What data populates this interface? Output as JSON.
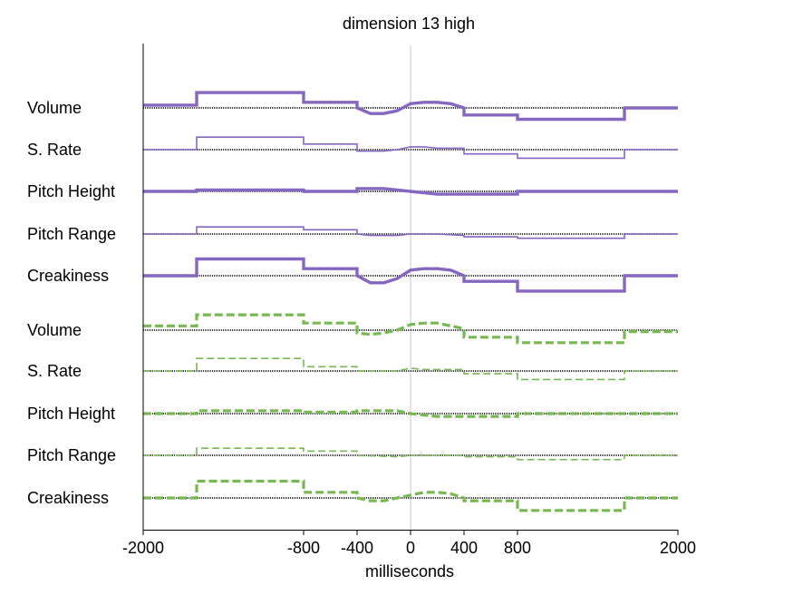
{
  "chart_data": {
    "type": "line",
    "title": "dimension 13 high",
    "xlabel": "milliseconds",
    "xlim": [
      -2000,
      2000
    ],
    "x_ticks": [
      -2000,
      -800,
      -400,
      0,
      400,
      800,
      2000
    ],
    "x_tick_labels": [
      "-2000",
      "-800",
      "-400",
      "0",
      "400",
      "800",
      "2000"
    ],
    "grid": false,
    "legend": "none",
    "colors": {
      "purple": "#8566c0",
      "green": "#77b852",
      "baseline": "#000000",
      "zero_line": "#c8c8c8"
    },
    "value_units": "pixels-free relative deviation from each row's baseline (positive = above)",
    "groups": [
      {
        "style": "solid",
        "color": "#8566c0",
        "rows": [
          {
            "label": "Volume",
            "width": "thick",
            "points": [
              [
                -2000,
                0.12
              ],
              [
                -1600,
                0.12
              ],
              [
                -1600,
                0.65
              ],
              [
                -800,
                0.65
              ],
              [
                -800,
                0.24
              ],
              [
                -400,
                0.24
              ],
              [
                -400,
                0.0
              ],
              [
                -300,
                -0.24
              ],
              [
                -200,
                -0.24
              ],
              [
                -100,
                -0.12
              ],
              [
                0,
                0.18
              ],
              [
                100,
                0.24
              ],
              [
                200,
                0.24
              ],
              [
                300,
                0.18
              ],
              [
                400,
                0.0
              ],
              [
                400,
                -0.3
              ],
              [
                800,
                -0.3
              ],
              [
                800,
                -0.48
              ],
              [
                1600,
                -0.48
              ],
              [
                1600,
                0.0
              ],
              [
                2000,
                0.0
              ]
            ]
          },
          {
            "label": "S. Rate",
            "width": "thin",
            "points": [
              [
                -2000,
                0.0
              ],
              [
                -1600,
                0.0
              ],
              [
                -1600,
                0.53
              ],
              [
                -800,
                0.53
              ],
              [
                -800,
                0.24
              ],
              [
                -400,
                0.24
              ],
              [
                -400,
                -0.06
              ],
              [
                -200,
                -0.06
              ],
              [
                -100,
                0.0
              ],
              [
                0,
                0.12
              ],
              [
                100,
                0.12
              ],
              [
                200,
                0.06
              ],
              [
                400,
                0.06
              ],
              [
                400,
                -0.18
              ],
              [
                800,
                -0.18
              ],
              [
                800,
                -0.36
              ],
              [
                1600,
                -0.36
              ],
              [
                1600,
                0.0
              ],
              [
                2000,
                0.0
              ]
            ]
          },
          {
            "label": "Pitch Height",
            "width": "thick",
            "points": [
              [
                -2000,
                0.0
              ],
              [
                -1600,
                0.0
              ],
              [
                -1600,
                0.06
              ],
              [
                -800,
                0.06
              ],
              [
                -800,
                0.0
              ],
              [
                -400,
                0.0
              ],
              [
                -400,
                0.12
              ],
              [
                -200,
                0.12
              ],
              [
                -100,
                0.06
              ],
              [
                0,
                0.0
              ],
              [
                100,
                -0.06
              ],
              [
                200,
                -0.12
              ],
              [
                400,
                -0.12
              ],
              [
                800,
                -0.12
              ],
              [
                800,
                0.0
              ],
              [
                1600,
                0.0
              ],
              [
                2000,
                0.0
              ]
            ]
          },
          {
            "label": "Pitch Range",
            "width": "thin",
            "points": [
              [
                -2000,
                0.0
              ],
              [
                -1600,
                0.0
              ],
              [
                -1600,
                0.3
              ],
              [
                -800,
                0.3
              ],
              [
                -800,
                0.18
              ],
              [
                -400,
                0.18
              ],
              [
                -400,
                0.0
              ],
              [
                -300,
                -0.06
              ],
              [
                -100,
                -0.06
              ],
              [
                0,
                0.0
              ],
              [
                200,
                0.0
              ],
              [
                400,
                -0.06
              ],
              [
                400,
                -0.12
              ],
              [
                800,
                -0.12
              ],
              [
                800,
                -0.18
              ],
              [
                1600,
                -0.18
              ],
              [
                1600,
                0.0
              ],
              [
                2000,
                0.0
              ]
            ]
          },
          {
            "label": "Creakiness",
            "width": "thick",
            "points": [
              [
                -2000,
                0.0
              ],
              [
                -1600,
                0.0
              ],
              [
                -1600,
                0.71
              ],
              [
                -800,
                0.71
              ],
              [
                -800,
                0.3
              ],
              [
                -400,
                0.3
              ],
              [
                -400,
                0.0
              ],
              [
                -300,
                -0.3
              ],
              [
                -200,
                -0.3
              ],
              [
                -100,
                -0.12
              ],
              [
                0,
                0.24
              ],
              [
                100,
                0.3
              ],
              [
                200,
                0.3
              ],
              [
                300,
                0.24
              ],
              [
                400,
                0.0
              ],
              [
                400,
                -0.24
              ],
              [
                800,
                -0.24
              ],
              [
                800,
                -0.65
              ],
              [
                1600,
                -0.65
              ],
              [
                1600,
                0.0
              ],
              [
                2000,
                0.0
              ]
            ]
          }
        ]
      },
      {
        "style": "dashed",
        "color": "#77b852",
        "rows": [
          {
            "label": "Volume",
            "width": "thick",
            "points": [
              [
                -2000,
                0.18
              ],
              [
                -1600,
                0.18
              ],
              [
                -1600,
                0.65
              ],
              [
                -800,
                0.65
              ],
              [
                -800,
                0.3
              ],
              [
                -400,
                0.3
              ],
              [
                -400,
                -0.12
              ],
              [
                -300,
                -0.18
              ],
              [
                -200,
                -0.12
              ],
              [
                -100,
                0.0
              ],
              [
                0,
                0.24
              ],
              [
                100,
                0.3
              ],
              [
                200,
                0.3
              ],
              [
                300,
                0.18
              ],
              [
                400,
                0.06
              ],
              [
                400,
                -0.3
              ],
              [
                800,
                -0.3
              ],
              [
                800,
                -0.53
              ],
              [
                1600,
                -0.53
              ],
              [
                1600,
                -0.06
              ],
              [
                2000,
                -0.06
              ]
            ]
          },
          {
            "label": "S. Rate",
            "width": "thin",
            "points": [
              [
                -2000,
                0.0
              ],
              [
                -1600,
                0.0
              ],
              [
                -1600,
                0.53
              ],
              [
                -800,
                0.53
              ],
              [
                -800,
                0.18
              ],
              [
                -400,
                0.18
              ],
              [
                -400,
                0.0
              ],
              [
                -100,
                0.0
              ],
              [
                0,
                0.12
              ],
              [
                100,
                0.06
              ],
              [
                200,
                0.06
              ],
              [
                400,
                0.06
              ],
              [
                400,
                -0.12
              ],
              [
                800,
                -0.12
              ],
              [
                800,
                -0.36
              ],
              [
                1600,
                -0.36
              ],
              [
                1600,
                0.0
              ],
              [
                2000,
                0.0
              ]
            ]
          },
          {
            "label": "Pitch Height",
            "width": "thick",
            "points": [
              [
                -2000,
                0.0
              ],
              [
                -1600,
                0.0
              ],
              [
                -1600,
                0.12
              ],
              [
                -800,
                0.12
              ],
              [
                -800,
                0.06
              ],
              [
                -400,
                0.06
              ],
              [
                -400,
                0.12
              ],
              [
                -100,
                0.12
              ],
              [
                0,
                0.0
              ],
              [
                100,
                -0.06
              ],
              [
                200,
                -0.12
              ],
              [
                800,
                -0.12
              ],
              [
                800,
                0.0
              ],
              [
                1600,
                0.0
              ],
              [
                2000,
                0.0
              ]
            ]
          },
          {
            "label": "Pitch Range",
            "width": "thin",
            "points": [
              [
                -2000,
                0.0
              ],
              [
                -1600,
                0.0
              ],
              [
                -1600,
                0.3
              ],
              [
                -800,
                0.3
              ],
              [
                -800,
                0.18
              ],
              [
                -400,
                0.18
              ],
              [
                -400,
                0.0
              ],
              [
                -100,
                -0.06
              ],
              [
                0,
                0.0
              ],
              [
                400,
                0.0
              ],
              [
                400,
                -0.06
              ],
              [
                800,
                -0.06
              ],
              [
                800,
                -0.18
              ],
              [
                1600,
                -0.18
              ],
              [
                1600,
                0.0
              ],
              [
                2000,
                0.0
              ]
            ]
          },
          {
            "label": "Creakiness",
            "width": "thick",
            "points": [
              [
                -2000,
                0.0
              ],
              [
                -1600,
                0.0
              ],
              [
                -1600,
                0.71
              ],
              [
                -800,
                0.71
              ],
              [
                -800,
                0.24
              ],
              [
                -400,
                0.24
              ],
              [
                -400,
                0.0
              ],
              [
                -300,
                -0.12
              ],
              [
                -200,
                -0.12
              ],
              [
                -100,
                0.0
              ],
              [
                0,
                0.12
              ],
              [
                100,
                0.24
              ],
              [
                200,
                0.24
              ],
              [
                300,
                0.18
              ],
              [
                400,
                0.0
              ],
              [
                400,
                -0.12
              ],
              [
                800,
                -0.12
              ],
              [
                800,
                -0.53
              ],
              [
                1600,
                -0.53
              ],
              [
                1600,
                0.0
              ],
              [
                2000,
                0.0
              ]
            ]
          }
        ]
      }
    ]
  }
}
